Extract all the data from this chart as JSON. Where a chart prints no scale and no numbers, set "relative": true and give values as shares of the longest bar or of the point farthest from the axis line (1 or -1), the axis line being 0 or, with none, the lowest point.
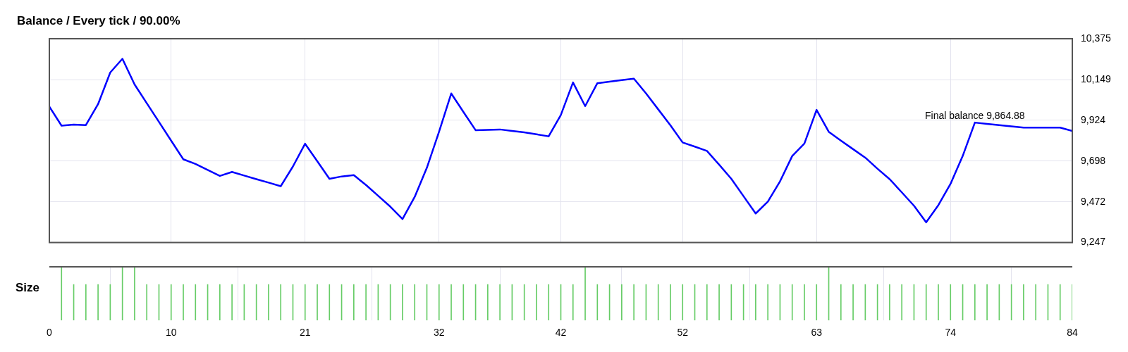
{
  "chart_data": [
    {
      "type": "line",
      "title": "Balance / Every tick / 90.00%",
      "x": [
        0,
        1,
        2,
        3,
        4,
        5,
        6,
        7,
        8,
        9,
        10,
        11,
        12,
        13,
        14,
        15,
        16,
        17,
        18,
        19,
        20,
        21,
        22,
        23,
        24,
        25,
        26,
        27,
        28,
        29,
        30,
        31,
        32,
        33,
        34,
        35,
        36,
        37,
        38,
        39,
        40,
        41,
        42,
        43,
        44,
        45,
        46,
        47,
        48,
        49,
        50,
        51,
        52,
        53,
        54,
        55,
        56,
        57,
        58,
        59,
        60,
        61,
        62,
        63,
        64,
        65,
        66,
        67,
        68,
        69,
        70,
        71,
        72,
        73,
        74,
        75,
        76,
        77,
        78,
        79,
        80,
        81,
        82,
        83,
        84
      ],
      "series": [
        {
          "color": "#0000ff",
          "values": [
            9999,
            9894,
            9900,
            9897,
            10013,
            10188,
            10264,
            10122,
            10018,
            9915,
            9811,
            9708,
            9682,
            9649,
            9616,
            9638,
            9618,
            9598,
            9579,
            9559,
            9668,
            9794,
            9697,
            9600,
            9613,
            9620,
            9566,
            9506,
            9446,
            9377,
            9500,
            9661,
            9860,
            10072,
            9970,
            9869,
            9871,
            9873,
            9865,
            9857,
            9846,
            9835,
            9953,
            10133,
            10002,
            10129,
            10137,
            10146,
            10154,
            10072,
            9984,
            9896,
            9801,
            9778,
            9754,
            9678,
            9600,
            9504,
            9408,
            9474,
            9586,
            9726,
            9795,
            9981,
            9860,
            9811,
            9764,
            9717,
            9656,
            9598,
            9525,
            9451,
            9359,
            9454,
            9572,
            9726,
            9911,
            9904,
            9897,
            9890,
            9883,
            9883,
            9883,
            9883,
            9865
          ]
        }
      ],
      "xlim": [
        0,
        84
      ],
      "xticks": [
        0,
        10,
        21,
        32,
        42,
        52,
        63,
        74,
        84
      ],
      "ylim": [
        9247,
        10375
      ],
      "yticks": [
        {
          "value": 9247,
          "label": "9,247"
        },
        {
          "value": 9472,
          "label": "9,472"
        },
        {
          "value": 9698,
          "label": "9,698"
        },
        {
          "value": 9924,
          "label": "9,924"
        },
        {
          "value": 10149,
          "label": "10,149"
        },
        {
          "value": 10375,
          "label": "10,375"
        }
      ],
      "tick_labels": "y",
      "grid": true,
      "legend": false,
      "marker": "none",
      "line_style": "solid",
      "annotations": [
        {
          "text": "Final balance 9,864.88",
          "x": 76,
          "y": 9911
        }
      ]
    },
    {
      "type": "bar",
      "ylabel": "Size",
      "relative": true,
      "x": [
        1,
        2,
        3,
        4,
        5,
        6,
        7,
        8,
        9,
        10,
        11,
        12,
        13,
        14,
        15,
        16,
        17,
        18,
        19,
        20,
        21,
        22,
        23,
        24,
        25,
        26,
        27,
        28,
        29,
        30,
        31,
        32,
        33,
        34,
        35,
        36,
        37,
        38,
        39,
        40,
        41,
        42,
        43,
        44,
        45,
        46,
        47,
        48,
        49,
        50,
        51,
        52,
        53,
        54,
        55,
        56,
        57,
        58,
        59,
        60,
        61,
        62,
        63,
        64,
        65,
        66,
        67,
        68,
        69,
        70,
        71,
        72,
        73,
        74,
        75,
        76,
        77,
        78,
        79,
        80,
        81,
        82,
        83,
        84
      ],
      "series": [
        {
          "color": "#66cc66",
          "values": [
            1,
            0.67,
            0.67,
            0.67,
            0.67,
            1,
            1,
            0.67,
            0.67,
            0.67,
            0.67,
            0.67,
            0.67,
            0.67,
            0.67,
            0.67,
            0.67,
            0.67,
            0.67,
            0.67,
            0.67,
            0.67,
            0.67,
            0.67,
            0.67,
            0.67,
            0.67,
            0.67,
            0.67,
            0.67,
            0.67,
            0.67,
            0.67,
            0.67,
            0.67,
            0.67,
            0.67,
            0.67,
            0.67,
            0.67,
            0.67,
            0.67,
            0.67,
            1,
            0.67,
            0.67,
            0.67,
            0.67,
            0.67,
            0.67,
            0.67,
            0.67,
            0.67,
            0.67,
            0.67,
            0.67,
            0.67,
            0.67,
            0.67,
            0.67,
            0.67,
            0.67,
            0.67,
            1,
            0.67,
            0.67,
            0.67,
            0.67,
            0.67,
            0.67,
            0.67,
            0.67,
            0.67,
            0.67,
            0.67,
            0.67,
            0.67,
            0.67,
            0.67,
            0.67,
            0.67,
            0.67,
            0.67,
            0.67
          ]
        }
      ],
      "xlim": [
        0,
        84
      ],
      "xticks": [
        0,
        10,
        21,
        32,
        42,
        52,
        63,
        74,
        84
      ],
      "tick_labels": "x",
      "grid": "x",
      "legend": false
    }
  ]
}
